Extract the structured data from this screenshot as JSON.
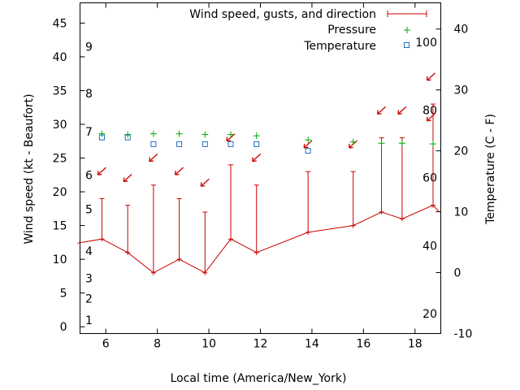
{
  "chart_data": {
    "type": "line",
    "xlabel": "Local time (America/New_York)",
    "ylabel_left": "Wind speed (kt - Beaufort)",
    "ylabel_right": "Temperature (C - F)",
    "xlim": [
      5,
      19
    ],
    "x_ticks": [
      "6",
      "8",
      "10",
      "12",
      "14",
      "16",
      "18"
    ],
    "ylim_left": [
      -1,
      48
    ],
    "y_ticks_left": [
      "0",
      "5",
      "10",
      "15",
      "20",
      "25",
      "30",
      "35",
      "40",
      "45"
    ],
    "ylim_right": [
      -10,
      44.3
    ],
    "y_ticks_right": [
      "-10",
      "0",
      "10",
      "20",
      "30",
      "40"
    ],
    "beaufort_labels": [
      {
        "label": "1",
        "value": 1
      },
      {
        "label": "2",
        "value": 4.2
      },
      {
        "label": "3",
        "value": 7.2
      },
      {
        "label": "4",
        "value": 11.2
      },
      {
        "label": "5",
        "value": 17.4
      },
      {
        "label": "6",
        "value": 22.5
      },
      {
        "label": "7",
        "value": 28.9
      },
      {
        "label": "8",
        "value": 34.6
      },
      {
        "label": "9",
        "value": 41.5
      }
    ],
    "fahrenheit_labels": [
      {
        "label": "20",
        "value": -6.7
      },
      {
        "label": "40",
        "value": 4.4
      },
      {
        "label": "60",
        "value": 15.6
      },
      {
        "label": "80",
        "value": 26.7
      },
      {
        "label": "100",
        "value": 37.8
      }
    ],
    "legend": {
      "position": "top-right",
      "wind": "Wind speed, gusts, and direction",
      "pressure": "Pressure",
      "temperature": "Temperature"
    },
    "series": [
      {
        "name": "Wind speed, gusts, and direction",
        "color": "#cc0000",
        "x": [
          4.9,
          5.85,
          6.85,
          7.85,
          8.85,
          9.85,
          10.85,
          11.85,
          13.85,
          15.6,
          16.7,
          17.5,
          18.7,
          18.95
        ],
        "values": [
          12.4,
          13,
          11,
          8,
          10,
          8,
          13,
          11,
          14,
          15,
          17,
          16,
          18,
          17
        ],
        "gusts": [
          null,
          19,
          18,
          21,
          19,
          17,
          24,
          21,
          23,
          23,
          28,
          28,
          33,
          null
        ]
      },
      {
        "name": "Direction arrows",
        "color": "#cc0000",
        "x": [
          5.85,
          6.85,
          7.85,
          8.85,
          9.85,
          10.85,
          11.85,
          13.85,
          15.6,
          16.7,
          17.5,
          18.7,
          19.0
        ],
        "values": [
          23,
          22,
          25,
          23,
          21.3,
          28,
          25,
          27,
          27,
          32,
          32,
          37,
          31
        ]
      },
      {
        "name": "Pressure",
        "color": "#00aa00",
        "x": [
          5.85,
          6.85,
          7.85,
          8.85,
          9.85,
          10.85,
          11.85,
          13.85,
          15.6,
          16.7,
          17.5,
          18.7
        ],
        "values": [
          28.6,
          28.5,
          28.6,
          28.6,
          28.5,
          28.5,
          28.3,
          27.7,
          27.4,
          27.2,
          27.2,
          27.1
        ]
      },
      {
        "name": "Temperature",
        "color": "#1f6fc0",
        "x": [
          5.85,
          6.85,
          7.85,
          8.85,
          9.85,
          10.85,
          11.85,
          13.85
        ],
        "values": [
          22.2,
          22.2,
          21.1,
          21.1,
          21.1,
          21.1,
          21.1,
          20.0
        ]
      }
    ]
  }
}
